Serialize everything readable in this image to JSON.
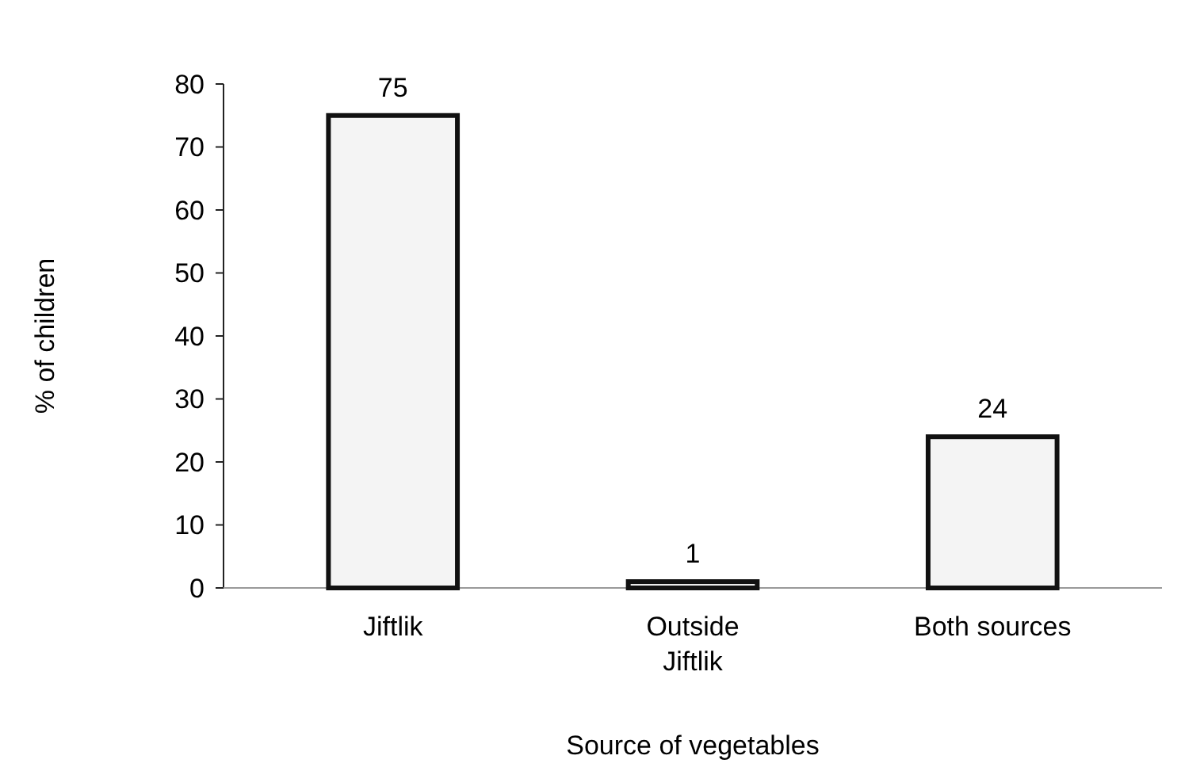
{
  "chart_data": {
    "type": "bar",
    "xlabel": "Source of vegetables",
    "ylabel": "% of children",
    "categories": [
      "Jiftlik",
      "Outside Jiftlik",
      "Both sources"
    ],
    "values": [
      75,
      1,
      24
    ],
    "color": "#f4f4f4",
    "data_labels": true,
    "ylim": [
      0,
      80
    ],
    "yticks": [
      0,
      10,
      20,
      30,
      40,
      50,
      60,
      70,
      80
    ],
    "grid": false
  }
}
